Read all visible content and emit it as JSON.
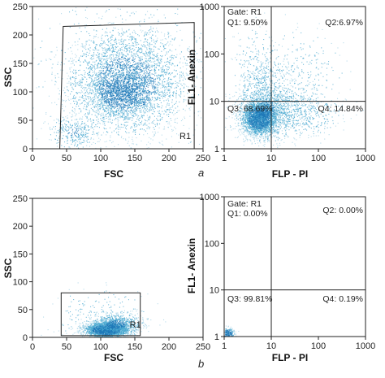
{
  "chart_data": [
    {
      "id": "a-scatter",
      "type": "scatter",
      "xlabel": "FSC",
      "ylabel": "SSC",
      "xlim": [
        0,
        250
      ],
      "ylim": [
        0,
        250
      ],
      "x_ticks": [
        "0",
        "50",
        "100",
        "150",
        "200",
        "250"
      ],
      "y_ticks": [
        "0",
        "50",
        "100",
        "150",
        "200",
        "250"
      ],
      "gate": {
        "label": "R1",
        "polygon": [
          [
            40,
            0
          ],
          [
            237,
            0
          ],
          [
            237,
            222
          ],
          [
            45,
            215
          ]
        ]
      },
      "density": {
        "seed": 11,
        "clusters": [
          {
            "n": 3200,
            "cx": 138,
            "cy": 115,
            "sx": 42,
            "sy": 46,
            "core": 0.8
          },
          {
            "n": 1100,
            "cx": 128,
            "cy": 100,
            "sx": 22,
            "sy": 22,
            "core": 1.0
          },
          {
            "n": 300,
            "cx": 60,
            "cy": 30,
            "sx": 18,
            "sy": 15,
            "core": 0.4
          },
          {
            "n": 600,
            "cx": 140,
            "cy": 150,
            "sx": 70,
            "sy": 60,
            "core": 0.0
          }
        ]
      },
      "grid": false
    },
    {
      "id": "a-quadrant",
      "type": "scatter",
      "xlabel": "FLP - PI",
      "ylabel": "FL1- Anexin",
      "xscale": "log",
      "yscale": "log",
      "xlim": [
        1,
        1000
      ],
      "ylim": [
        1,
        1000
      ],
      "x_ticks": [
        "1",
        "10",
        "100",
        "1000"
      ],
      "y_ticks": [
        "1",
        "10",
        "100",
        "1000"
      ],
      "quadrant_divider": {
        "x": 10,
        "y": 10
      },
      "gate_text": "Gate: R1",
      "quadrants": [
        {
          "name": "Q1",
          "text": "Q1: 9.50%",
          "value": 9.5
        },
        {
          "name": "Q2",
          "text": "Q2:6.97%",
          "value": 6.97
        },
        {
          "name": "Q3",
          "text": "Q3: 68.69%",
          "value": 68.69
        },
        {
          "name": "Q4",
          "text": "Q4: 14.84%",
          "value": 14.84
        }
      ],
      "density": {
        "seed": 23,
        "clusters": [
          {
            "n": 2600,
            "cx": 5.5,
            "cy": 4.5,
            "sx": 0.18,
            "sy": 0.18,
            "core": 1.0
          },
          {
            "n": 1200,
            "cx": 8,
            "cy": 7,
            "sx": 0.35,
            "sy": 0.35,
            "core": 0.4
          },
          {
            "n": 500,
            "cx": 40,
            "cy": 6,
            "sx": 0.45,
            "sy": 0.25,
            "core": 0.0
          },
          {
            "n": 320,
            "cx": 5,
            "cy": 40,
            "sx": 0.25,
            "sy": 0.45,
            "core": 0.0
          },
          {
            "n": 260,
            "cx": 40,
            "cy": 40,
            "sx": 0.45,
            "sy": 0.45,
            "core": 0.0
          }
        ]
      },
      "grid": false
    },
    {
      "id": "b-scatter",
      "type": "scatter",
      "xlabel": "FSC",
      "ylabel": "SSC",
      "xlim": [
        0,
        250
      ],
      "ylim": [
        0,
        250
      ],
      "x_ticks": [
        "0",
        "50",
        "100",
        "150",
        "200",
        "250"
      ],
      "y_ticks": [
        "0",
        "50",
        "100",
        "150",
        "200",
        "250"
      ],
      "gate": {
        "label": "R1",
        "polygon": [
          [
            42,
            3
          ],
          [
            158,
            3
          ],
          [
            158,
            80
          ],
          [
            42,
            80
          ]
        ]
      },
      "density": {
        "seed": 37,
        "clusters": [
          {
            "n": 2400,
            "cx": 108,
            "cy": 14,
            "sx": 16,
            "sy": 7,
            "core": 1.0
          },
          {
            "n": 700,
            "cx": 122,
            "cy": 24,
            "sx": 18,
            "sy": 9,
            "core": 0.6
          },
          {
            "n": 200,
            "cx": 100,
            "cy": 40,
            "sx": 35,
            "sy": 25,
            "core": 0.0
          }
        ]
      },
      "grid": false
    },
    {
      "id": "b-quadrant",
      "type": "scatter",
      "xlabel": "FLP - PI",
      "ylabel": "FL1- Anexin",
      "xscale": "log",
      "yscale": "log",
      "xlim": [
        1,
        1000
      ],
      "ylim": [
        1,
        1000
      ],
      "x_ticks": [
        "1",
        "10",
        "100",
        "1000"
      ],
      "y_ticks": [
        "1",
        "10",
        "100",
        "1000"
      ],
      "quadrant_divider": {
        "x": 10,
        "y": 10
      },
      "gate_text": "Gate: R1",
      "quadrants": [
        {
          "name": "Q1",
          "text": "Q1: 0.00%",
          "value": 0.0
        },
        {
          "name": "Q2",
          "text": "Q2: 0.00%",
          "value": 0.0
        },
        {
          "name": "Q3",
          "text": "Q3: 99.81%",
          "value": 99.81
        },
        {
          "name": "Q4",
          "text": "Q4: 0.19%",
          "value": 0.19
        }
      ],
      "density": {
        "seed": 53,
        "clusters": [
          {
            "n": 220,
            "cx": 1.2,
            "cy": 1.15,
            "sx": 0.08,
            "sy": 0.07,
            "core": 1.0
          }
        ]
      },
      "grid": false
    }
  ],
  "panel_labels": {
    "a": "a",
    "b": "b"
  },
  "colors": {
    "axis": "#222222",
    "dot_light": "#9ecfe4",
    "dot_mid": "#4aa8d0",
    "dot_dark": "#1f79b8",
    "gate_line": "#222222"
  }
}
